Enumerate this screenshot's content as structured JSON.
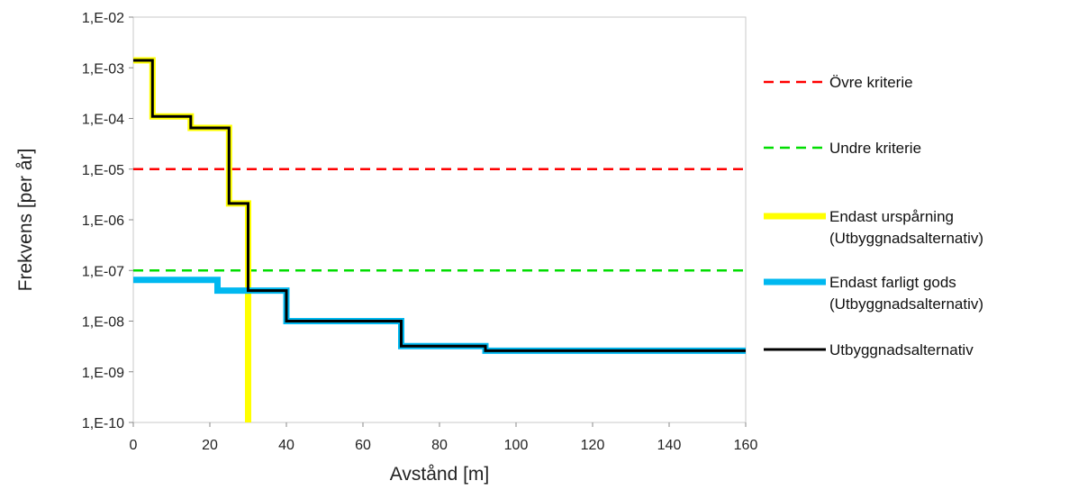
{
  "chart_data": {
    "type": "line",
    "title": "",
    "xlabel": "Avstånd [m]",
    "ylabel": "Frekvens [per år]",
    "xlim": [
      0,
      160
    ],
    "ylim": [
      1e-10,
      0.01
    ],
    "yscale": "log",
    "x_ticks": [
      0,
      20,
      40,
      60,
      80,
      100,
      120,
      140,
      160
    ],
    "y_ticks": [
      0.01,
      0.001,
      0.0001,
      1e-05,
      1e-06,
      1e-07,
      1e-08,
      1e-09,
      1e-10
    ],
    "x_tick_labels": [
      "0",
      "20",
      "40",
      "60",
      "80",
      "100",
      "120",
      "140",
      "160"
    ],
    "y_tick_labels": [
      "1,E-02",
      "1,E-03",
      "1,E-04",
      "1,E-05",
      "1,E-06",
      "1,E-07",
      "1,E-08",
      "1,E-09",
      "1,E-10"
    ],
    "grid": false,
    "legend_position": "right",
    "series": [
      {
        "name": "Övre kriterie",
        "color": "#ff0000",
        "style": "dashed",
        "x": [
          0,
          160
        ],
        "y": [
          1e-05,
          1e-05
        ]
      },
      {
        "name": "Undre kriterie",
        "color": "#00dd00",
        "style": "dashed",
        "x": [
          0,
          160
        ],
        "y": [
          1e-07,
          1e-07
        ]
      },
      {
        "name": "Endast urspårning\n(Utbyggnadsalternativ)",
        "color": "#ffff00",
        "style": "solid-thick",
        "x": [
          0,
          5,
          5,
          15,
          15,
          25,
          25,
          30,
          30
        ],
        "y": [
          0.0014,
          0.0014,
          0.00011,
          0.00011,
          6.5e-05,
          6.5e-05,
          2.1e-06,
          2.1e-06,
          1e-10
        ]
      },
      {
        "name": "Endast farligt gods\n(Utbyggnadsalternativ)",
        "color": "#00b8f0",
        "style": "solid-thick",
        "x": [
          0,
          22,
          22,
          38,
          38,
          40,
          40,
          70,
          70,
          92,
          92,
          160
        ],
        "y": [
          6.5e-08,
          6.5e-08,
          4e-08,
          4e-08,
          4e-08,
          4e-08,
          1e-08,
          1e-08,
          3.2e-09,
          3.2e-09,
          2.6e-09,
          2.6e-09
        ]
      },
      {
        "name": "Utbyggnadsalternativ",
        "color": "#000000",
        "style": "solid",
        "x": [
          0,
          5,
          5,
          15,
          15,
          25,
          25,
          30,
          30,
          38,
          38,
          40,
          40,
          70,
          70,
          92,
          92,
          160
        ],
        "y": [
          0.0014,
          0.0014,
          0.00011,
          0.00011,
          6.5e-05,
          6.5e-05,
          2.1e-06,
          2.1e-06,
          4e-08,
          4e-08,
          4e-08,
          4e-08,
          1e-08,
          1e-08,
          3.2e-09,
          3.2e-09,
          2.6e-09,
          2.6e-09
        ]
      }
    ]
  }
}
